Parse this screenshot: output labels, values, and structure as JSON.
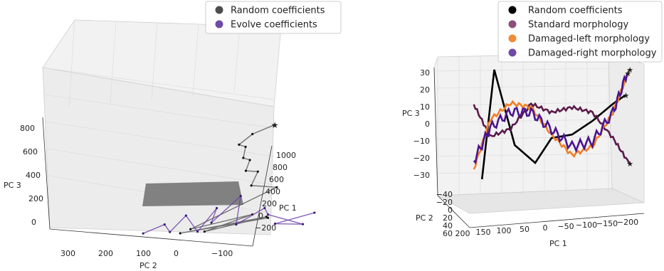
{
  "chart_data": [
    {
      "type": "line3d",
      "xlabel": "PC 1",
      "ylabel": "PC 2",
      "zlabel": "PC 3",
      "x_ticks": [
        "1000",
        "800",
        "600",
        "400",
        "200",
        "0",
        "−200"
      ],
      "y_ticks": [
        "300",
        "200",
        "100",
        "0",
        "−100"
      ],
      "z_ticks": [
        "800",
        "600",
        "400",
        "200",
        "0"
      ],
      "xlim": [
        -250,
        1100
      ],
      "ylim": [
        -150,
        350
      ],
      "zlim": [
        -50,
        850
      ],
      "legend": {
        "position": "top-right",
        "entries": [
          {
            "label": "Random coefficients",
            "color": "#4d4d4d"
          },
          {
            "label": "Evolve coefficients",
            "color": "#6f4aa8"
          }
        ]
      },
      "series": [
        {
          "name": "Random coefficients",
          "color": "#555555",
          "marker": "star-end",
          "points": [
            [
              700,
              -100,
              60
            ],
            [
              300,
              200,
              40
            ],
            [
              600,
              -80,
              80
            ],
            [
              200,
              150,
              50
            ],
            [
              650,
              -50,
              100
            ],
            [
              250,
              180,
              70
            ],
            [
              550,
              -100,
              300
            ],
            [
              350,
              0,
              350
            ],
            [
              620,
              -60,
              420
            ],
            [
              380,
              10,
              460
            ],
            [
              630,
              -40,
              510
            ],
            [
              360,
              20,
              560
            ],
            [
              640,
              -30,
              610
            ],
            [
              370,
              30,
              660
            ],
            [
              650,
              -50,
              700
            ],
            [
              600,
              -100,
              760
            ]
          ]
        },
        {
          "name": "Evolve coefficients",
          "color": "#6a3fa8",
          "marker": "none",
          "points": [
            [
              300,
              300,
              60
            ],
            [
              250,
              250,
              120
            ],
            [
              350,
              220,
              50
            ],
            [
              200,
              200,
              180
            ],
            [
              320,
              150,
              40
            ],
            [
              180,
              120,
              220
            ],
            [
              400,
              100,
              90
            ],
            [
              150,
              60,
              300
            ],
            [
              420,
              30,
              60
            ],
            [
              120,
              0,
              200
            ],
            [
              380,
              -50,
              120
            ],
            [
              100,
              -100,
              60
            ],
            [
              450,
              -80,
              40
            ],
            [
              90,
              -130,
              140
            ]
          ]
        }
      ]
    },
    {
      "type": "line3d",
      "xlabel": "PC 1",
      "ylabel": "PC 2",
      "zlabel": "PC 3",
      "x_ticks": [
        "200",
        "150",
        "100",
        "50",
        "0",
        "−50",
        "−100",
        "−150",
        "−200"
      ],
      "y_ticks": [
        "−40",
        "−20",
        "0",
        "20",
        "40",
        "60"
      ],
      "z_ticks": [
        "30",
        "20",
        "10",
        "0",
        "−10",
        "−20",
        "−30"
      ],
      "xlim": [
        -200,
        200
      ],
      "ylim": [
        -40,
        60
      ],
      "zlim": [
        -30,
        30
      ],
      "legend": {
        "position": "top-right",
        "entries": [
          {
            "label": "Random coefficients",
            "color": "#000000"
          },
          {
            "label": "Standard morphology",
            "color": "#8a4f7d"
          },
          {
            "label": "Damaged-left morphology",
            "color": "#f08c36"
          },
          {
            "label": "Damaged-right morphology",
            "color": "#6f4aa8"
          }
        ]
      },
      "series": [
        {
          "name": "Random coefficients",
          "color": "#000000",
          "points": [
            [
              170,
              50,
              -30
            ],
            [
              140,
              0,
              30
            ],
            [
              90,
              -10,
              -15
            ],
            [
              40,
              -5,
              -25
            ],
            [
              0,
              0,
              -10
            ],
            [
              -50,
              0,
              -8
            ],
            [
              -100,
              0,
              0
            ],
            [
              -150,
              0,
              10
            ],
            [
              -180,
              0,
              15
            ]
          ]
        },
        {
          "name": "Standard morphology",
          "color": "#5a1a4a",
          "points": [
            [
              190,
              -20,
              8
            ],
            [
              150,
              -10,
              -10
            ],
            [
              100,
              -5,
              -5
            ],
            [
              50,
              0,
              10
            ],
            [
              0,
              0,
              5
            ],
            [
              -50,
              0,
              8
            ],
            [
              -100,
              0,
              5
            ],
            [
              -150,
              0,
              -10
            ],
            [
              -190,
              0,
              -25
            ]
          ]
        },
        {
          "name": "Damaged-left morphology",
          "color": "#f07f24",
          "points": [
            [
              190,
              -20,
              -30
            ],
            [
              150,
              -10,
              0
            ],
            [
              100,
              -5,
              10
            ],
            [
              50,
              0,
              8
            ],
            [
              0,
              0,
              -8
            ],
            [
              -50,
              0,
              -20
            ],
            [
              -100,
              0,
              -15
            ],
            [
              -150,
              0,
              5
            ],
            [
              -190,
              0,
              30
            ]
          ]
        },
        {
          "name": "Damaged-right morphology",
          "color": "#4a1490",
          "points": [
            [
              190,
              -20,
              -25
            ],
            [
              150,
              -10,
              -5
            ],
            [
              100,
              -5,
              5
            ],
            [
              50,
              0,
              5
            ],
            [
              0,
              0,
              -5
            ],
            [
              -50,
              0,
              -15
            ],
            [
              -100,
              0,
              -12
            ],
            [
              -150,
              0,
              5
            ],
            [
              -185,
              0,
              28
            ]
          ]
        }
      ]
    }
  ]
}
